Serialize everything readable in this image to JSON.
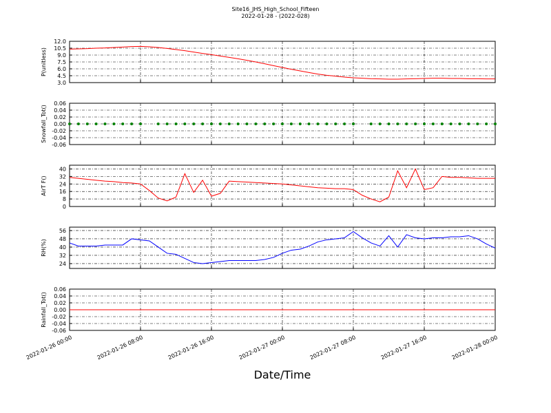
{
  "chart_data": [
    {
      "type": "line",
      "title": "Site16_JHS_High_School_Fifteen",
      "subtitle": "2022-01-28 - (2022-028)",
      "ylabel": "P(unitless)",
      "color": "#ff0000",
      "ylim": [
        3,
        12
      ],
      "yticks": [
        {
          "value": 3,
          "label": "3.0"
        },
        4.5,
        {
          "value": 6,
          "label": "6.0"
        },
        7.5,
        {
          "value": 9,
          "label": "9.0"
        },
        10.5,
        {
          "value": 12,
          "label": "12.0"
        }
      ],
      "grid": true,
      "x": [
        "2022-01-26 00:00",
        "2022-01-26 01:00",
        "2022-01-26 02:00",
        "2022-01-26 03:00",
        "2022-01-26 04:00",
        "2022-01-26 05:00",
        "2022-01-26 06:00",
        "2022-01-26 07:00",
        "2022-01-26 08:00",
        "2022-01-26 09:00",
        "2022-01-26 10:00",
        "2022-01-26 11:00",
        "2022-01-26 12:00",
        "2022-01-26 13:00",
        "2022-01-26 14:00",
        "2022-01-26 15:00",
        "2022-01-26 16:00",
        "2022-01-26 17:00",
        "2022-01-26 18:00",
        "2022-01-26 19:00",
        "2022-01-26 20:00",
        "2022-01-26 21:00",
        "2022-01-26 22:00",
        "2022-01-26 23:00",
        "2022-01-27 00:00",
        "2022-01-27 01:00",
        "2022-01-27 02:00",
        "2022-01-27 03:00",
        "2022-01-27 04:00",
        "2022-01-27 05:00",
        "2022-01-27 06:00",
        "2022-01-27 07:00",
        "2022-01-27 08:00",
        "2022-01-27 09:00",
        "2022-01-27 10:00",
        "2022-01-27 11:00",
        "2022-01-27 12:00",
        "2022-01-27 13:00",
        "2022-01-27 14:00",
        "2022-01-27 15:00",
        "2022-01-27 16:00",
        "2022-01-27 17:00",
        "2022-01-27 18:00",
        "2022-01-27 19:00",
        "2022-01-27 20:00",
        "2022-01-27 21:00",
        "2022-01-27 22:00",
        "2022-01-27 23:00",
        "2022-01-28 00:00"
      ],
      "values": [
        10.3,
        10.35,
        10.4,
        10.5,
        10.55,
        10.65,
        10.75,
        10.85,
        10.9,
        10.8,
        10.65,
        10.45,
        10.2,
        9.95,
        9.65,
        9.35,
        9.1,
        8.8,
        8.5,
        8.2,
        7.85,
        7.5,
        7.1,
        6.7,
        6.3,
        5.9,
        5.55,
        5.2,
        4.85,
        4.6,
        4.4,
        4.2,
        4.05,
        3.95,
        3.85,
        3.8,
        3.75,
        3.75,
        3.8,
        3.85,
        3.9,
        3.95,
        3.95,
        3.9,
        3.9,
        3.85,
        3.85,
        3.8,
        3.8
      ]
    },
    {
      "type": "scatter",
      "ylabel": "Snowfall_Tot()",
      "color": "#008000",
      "ylim": [
        -0.06,
        0.06
      ],
      "yticks": [
        -0.06,
        -0.04,
        -0.02,
        {
          "value": 0,
          "label": "0.00"
        },
        0.02,
        0.04,
        0.06
      ],
      "grid": true,
      "x": [
        "2022-01-26 00:00",
        "2022-01-26 01:00",
        "2022-01-26 02:00",
        "2022-01-26 03:00",
        "2022-01-26 04:00",
        "2022-01-26 05:00",
        "2022-01-26 06:00",
        "2022-01-26 07:00",
        "2022-01-26 08:00",
        "2022-01-26 09:00",
        "2022-01-26 10:00",
        "2022-01-26 11:00",
        "2022-01-26 12:00",
        "2022-01-26 13:00",
        "2022-01-26 14:00",
        "2022-01-26 15:00",
        "2022-01-26 16:00",
        "2022-01-26 17:00",
        "2022-01-26 18:00",
        "2022-01-26 19:00",
        "2022-01-26 20:00",
        "2022-01-26 21:00",
        "2022-01-26 22:00",
        "2022-01-26 23:00",
        "2022-01-27 00:00",
        "2022-01-27 01:00",
        "2022-01-27 02:00",
        "2022-01-27 03:00",
        "2022-01-27 04:00",
        "2022-01-27 05:00",
        "2022-01-27 06:00",
        "2022-01-27 07:00",
        "2022-01-27 08:00",
        "2022-01-27 09:00",
        "2022-01-27 10:00",
        "2022-01-27 11:00",
        "2022-01-27 12:00",
        "2022-01-27 13:00",
        "2022-01-27 14:00",
        "2022-01-27 15:00",
        "2022-01-27 16:00",
        "2022-01-27 17:00",
        "2022-01-27 18:00",
        "2022-01-27 19:00",
        "2022-01-27 20:00",
        "2022-01-27 21:00",
        "2022-01-27 22:00",
        "2022-01-27 23:00",
        "2022-01-28 00:00"
      ],
      "values": [
        0,
        0,
        0,
        0,
        0,
        0,
        0,
        0,
        0,
        null,
        0,
        0,
        0,
        0,
        0,
        0,
        0,
        0,
        0,
        0,
        0,
        0,
        0,
        0,
        0,
        0,
        0,
        0,
        0,
        0,
        0,
        0,
        0,
        null,
        0,
        0,
        0,
        0,
        0,
        0,
        0,
        0,
        0,
        0,
        0,
        0,
        0,
        0,
        0
      ]
    },
    {
      "type": "line",
      "ylabel": "AirT F()",
      "color": "#ff0000",
      "ylim": [
        0,
        44
      ],
      "yticks": [
        0,
        8,
        16,
        24,
        32,
        40
      ],
      "grid": true,
      "x": [
        "2022-01-26 00:00",
        "2022-01-26 01:00",
        "2022-01-26 02:00",
        "2022-01-26 03:00",
        "2022-01-26 04:00",
        "2022-01-26 05:00",
        "2022-01-26 06:00",
        "2022-01-26 07:00",
        "2022-01-26 08:00",
        "2022-01-26 09:00",
        "2022-01-26 10:00",
        "2022-01-26 11:00",
        "2022-01-26 12:00",
        "2022-01-26 13:00",
        "2022-01-26 14:00",
        "2022-01-26 15:00",
        "2022-01-26 16:00",
        "2022-01-26 17:00",
        "2022-01-26 18:00",
        "2022-01-26 19:00",
        "2022-01-26 20:00",
        "2022-01-26 21:00",
        "2022-01-26 22:00",
        "2022-01-26 23:00",
        "2022-01-27 00:00",
        "2022-01-27 01:00",
        "2022-01-27 02:00",
        "2022-01-27 03:00",
        "2022-01-27 04:00",
        "2022-01-27 05:00",
        "2022-01-27 06:00",
        "2022-01-27 07:00",
        "2022-01-27 08:00",
        "2022-01-27 09:00",
        "2022-01-27 10:00",
        "2022-01-27 11:00",
        "2022-01-27 12:00",
        "2022-01-27 13:00",
        "2022-01-27 14:00",
        "2022-01-27 15:00",
        "2022-01-27 16:00",
        "2022-01-27 17:00",
        "2022-01-27 18:00",
        "2022-01-27 19:00",
        "2022-01-27 20:00",
        "2022-01-27 21:00",
        "2022-01-27 22:00",
        "2022-01-27 23:00",
        "2022-01-28 00:00"
      ],
      "values": [
        31,
        30,
        29,
        28,
        27,
        26.5,
        25.5,
        25,
        24,
        17,
        9,
        6,
        10,
        35,
        15,
        28,
        11,
        14,
        27,
        26.5,
        26,
        25.5,
        25,
        24.5,
        24,
        23,
        22,
        21,
        20,
        19.5,
        19,
        19,
        18,
        12,
        8,
        5,
        10,
        38,
        20,
        40,
        18,
        20,
        32,
        31,
        31,
        30.5,
        30,
        30,
        30
      ]
    },
    {
      "type": "line",
      "ylabel": "RH(%)",
      "color": "#0000ff",
      "ylim": [
        19.3,
        59.3
      ],
      "yticks": [
        24,
        32,
        40,
        48,
        56
      ],
      "grid": true,
      "x": [
        "2022-01-26 00:00",
        "2022-01-26 01:00",
        "2022-01-26 02:00",
        "2022-01-26 03:00",
        "2022-01-26 04:00",
        "2022-01-26 05:00",
        "2022-01-26 06:00",
        "2022-01-26 07:00",
        "2022-01-26 08:00",
        "2022-01-26 09:00",
        "2022-01-26 10:00",
        "2022-01-26 11:00",
        "2022-01-26 12:00",
        "2022-01-26 13:00",
        "2022-01-26 14:00",
        "2022-01-26 15:00",
        "2022-01-26 16:00",
        "2022-01-26 17:00",
        "2022-01-26 18:00",
        "2022-01-26 19:00",
        "2022-01-26 20:00",
        "2022-01-26 21:00",
        "2022-01-26 22:00",
        "2022-01-26 23:00",
        "2022-01-27 00:00",
        "2022-01-27 01:00",
        "2022-01-27 02:00",
        "2022-01-27 03:00",
        "2022-01-27 04:00",
        "2022-01-27 05:00",
        "2022-01-27 06:00",
        "2022-01-27 07:00",
        "2022-01-27 08:00",
        "2022-01-27 09:00",
        "2022-01-27 10:00",
        "2022-01-27 11:00",
        "2022-01-27 12:00",
        "2022-01-27 13:00",
        "2022-01-27 14:00",
        "2022-01-27 15:00",
        "2022-01-27 16:00",
        "2022-01-27 17:00",
        "2022-01-27 18:00",
        "2022-01-27 19:00",
        "2022-01-27 20:00",
        "2022-01-27 21:00",
        "2022-01-27 22:00",
        "2022-01-27 23:00",
        "2022-01-28 00:00"
      ],
      "values": [
        44,
        41,
        41,
        41,
        42,
        42,
        42,
        48,
        47,
        46,
        40,
        34,
        33,
        29,
        25,
        24,
        25,
        26,
        27,
        27,
        27,
        27,
        28,
        30,
        34,
        37,
        38,
        41,
        45,
        47,
        48,
        49,
        55,
        49,
        44,
        41,
        51,
        40,
        52,
        49,
        48,
        49,
        49,
        50,
        50,
        51,
        48,
        43,
        39
      ]
    },
    {
      "type": "line",
      "ylabel": "Rainfall_Tot()",
      "xlabel": "Date/Time",
      "color": "#ff0000",
      "ylim": [
        -0.06,
        0.06
      ],
      "yticks": [
        -0.06,
        -0.04,
        -0.02,
        {
          "value": 0,
          "label": "0.00"
        },
        0.02,
        0.04,
        0.06
      ],
      "grid": true,
      "xlim": [
        "2022-01-26 00:00",
        "2022-01-28 00:00"
      ],
      "xticks": [
        "2022-01-26 00:00",
        "2022-01-26 08:00",
        "2022-01-26 16:00",
        "2022-01-27 00:00",
        "2022-01-27 08:00",
        "2022-01-27 16:00",
        "2022-01-28 00:00"
      ],
      "x": [
        "2022-01-26 00:00",
        "2022-01-26 01:00",
        "2022-01-26 02:00",
        "2022-01-26 03:00",
        "2022-01-26 04:00",
        "2022-01-26 05:00",
        "2022-01-26 06:00",
        "2022-01-26 07:00",
        "2022-01-26 08:00",
        "2022-01-26 09:00",
        "2022-01-26 10:00",
        "2022-01-26 11:00",
        "2022-01-26 12:00",
        "2022-01-26 13:00",
        "2022-01-26 14:00",
        "2022-01-26 15:00",
        "2022-01-26 16:00",
        "2022-01-26 17:00",
        "2022-01-26 18:00",
        "2022-01-26 19:00",
        "2022-01-26 20:00",
        "2022-01-26 21:00",
        "2022-01-26 22:00",
        "2022-01-26 23:00",
        "2022-01-27 00:00",
        "2022-01-27 01:00",
        "2022-01-27 02:00",
        "2022-01-27 03:00",
        "2022-01-27 04:00",
        "2022-01-27 05:00",
        "2022-01-27 06:00",
        "2022-01-27 07:00",
        "2022-01-27 08:00",
        "2022-01-27 09:00",
        "2022-01-27 10:00",
        "2022-01-27 11:00",
        "2022-01-27 12:00",
        "2022-01-27 13:00",
        "2022-01-27 14:00",
        "2022-01-27 15:00",
        "2022-01-27 16:00",
        "2022-01-27 17:00",
        "2022-01-27 18:00",
        "2022-01-27 19:00",
        "2022-01-27 20:00",
        "2022-01-27 21:00",
        "2022-01-27 22:00",
        "2022-01-27 23:00",
        "2022-01-28 00:00"
      ],
      "values": [
        0,
        0,
        0,
        0,
        0,
        0,
        0,
        0,
        0,
        0,
        0,
        0,
        0,
        0,
        0,
        0,
        0,
        0,
        0,
        0,
        0,
        0,
        0,
        0,
        0,
        0,
        0,
        0,
        0,
        0,
        0,
        0,
        0,
        0,
        0,
        0,
        0,
        0,
        0,
        0,
        0,
        0,
        0,
        0,
        0,
        0,
        0,
        0,
        0
      ]
    }
  ]
}
